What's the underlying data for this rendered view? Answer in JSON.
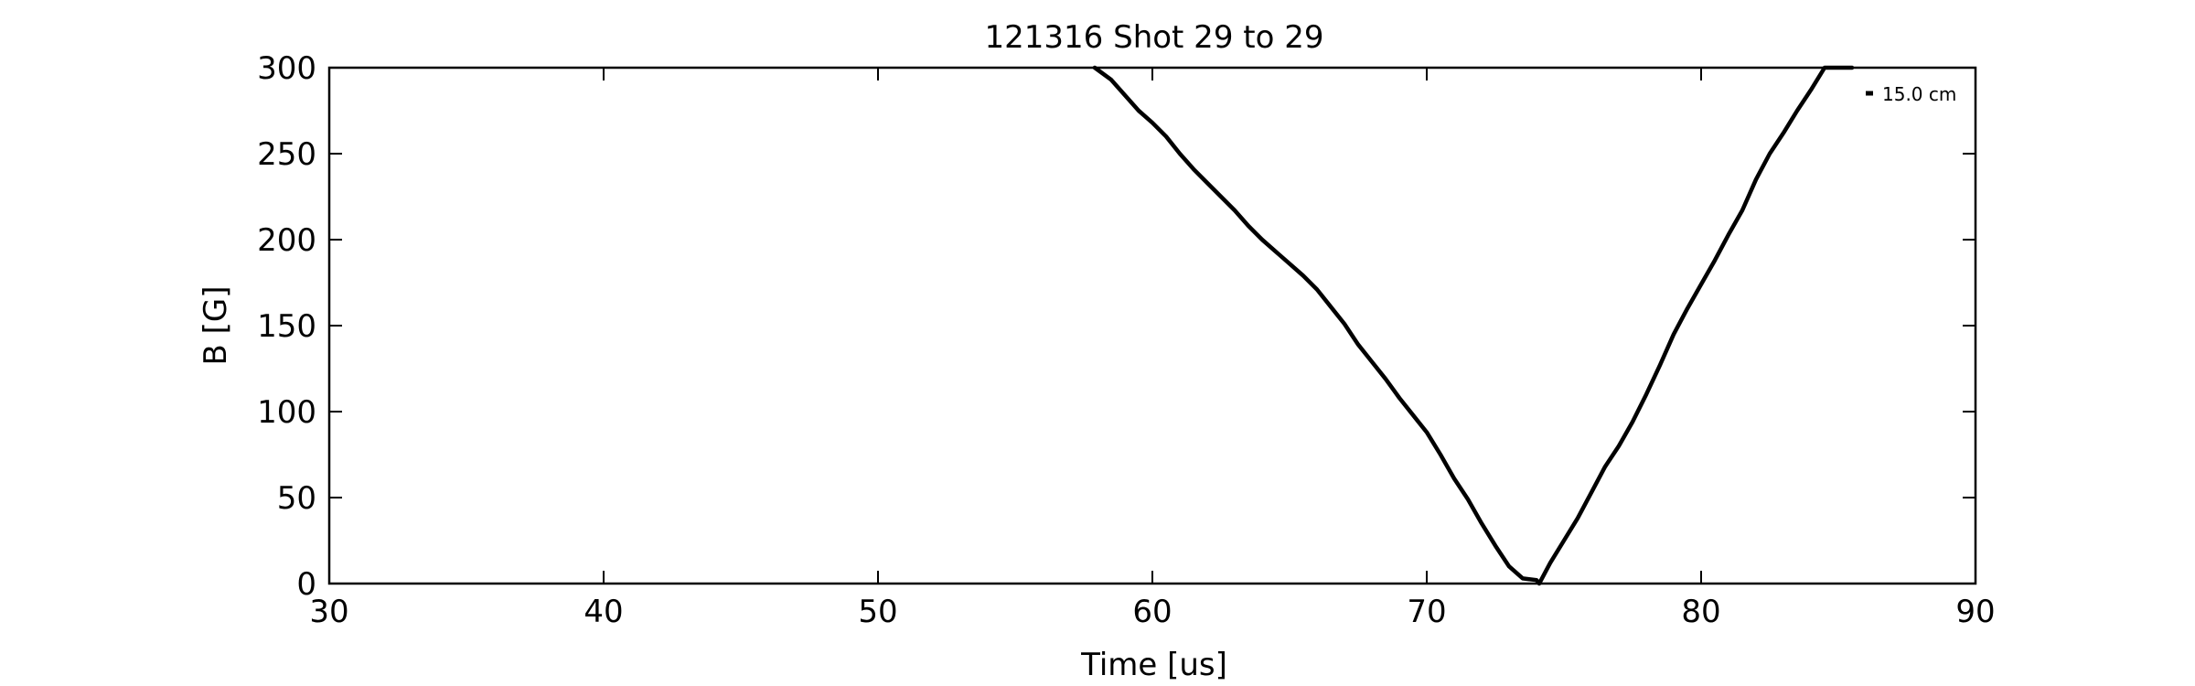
{
  "chart_data": {
    "type": "line",
    "title": "121316 Shot 29 to 29",
    "xlabel": "Time [us]",
    "ylabel": "B [G]",
    "xlim": [
      30,
      90
    ],
    "ylim": [
      0,
      300
    ],
    "xticks": [
      30,
      40,
      50,
      60,
      70,
      80,
      90
    ],
    "yticks": [
      0,
      50,
      100,
      150,
      200,
      250,
      300
    ],
    "grid": false,
    "legend_position": "top-right",
    "colors": {
      "line": "#000000",
      "axes": "#000000",
      "background": "#ffffff"
    },
    "series": [
      {
        "name": "15.0 cm",
        "x": [
          57.9,
          58.5,
          59.0,
          59.5,
          60.0,
          60.5,
          61.0,
          61.5,
          62.0,
          62.5,
          63.0,
          63.5,
          64.0,
          64.5,
          65.0,
          65.5,
          66.0,
          66.5,
          67.0,
          67.5,
          68.0,
          68.5,
          69.0,
          69.5,
          70.0,
          70.5,
          71.0,
          71.5,
          72.0,
          72.5,
          73.0,
          73.5,
          74.0,
          74.1,
          74.5,
          75.0,
          75.5,
          76.0,
          76.5,
          77.0,
          77.5,
          78.0,
          78.5,
          79.0,
          79.5,
          80.0,
          80.5,
          81.0,
          81.5,
          82.0,
          82.5,
          83.0,
          83.5,
          84.0,
          84.5,
          85.0,
          85.5
        ],
        "y": [
          300,
          293,
          284,
          275,
          268,
          260,
          250,
          241,
          233,
          225,
          217,
          208,
          200,
          193,
          186,
          179,
          171,
          161,
          151,
          139,
          129,
          119,
          108,
          98,
          88,
          75,
          61,
          49,
          35,
          22,
          10,
          3,
          2,
          0,
          12,
          25,
          38,
          53,
          68,
          80,
          94,
          110,
          127,
          145,
          160,
          174,
          188,
          203,
          217,
          235,
          250,
          262,
          275,
          287,
          300,
          300,
          300
        ]
      }
    ]
  }
}
